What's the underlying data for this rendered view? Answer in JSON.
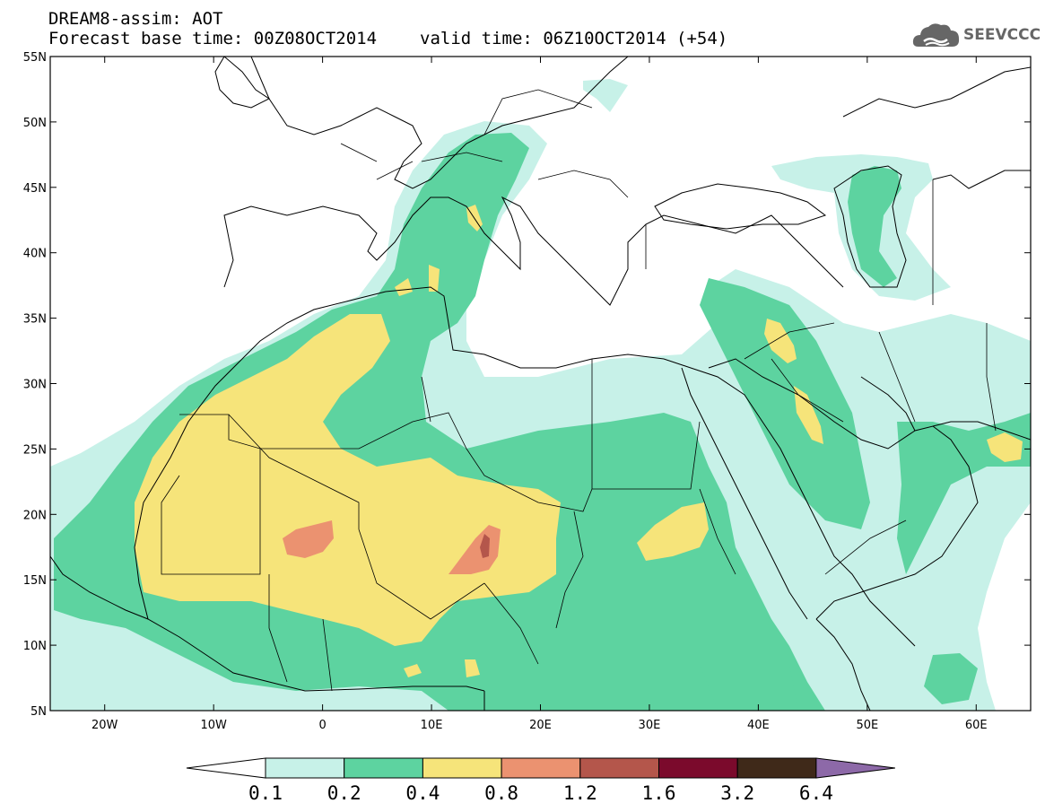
{
  "header": {
    "line1": "DREAM8-assim: AOT",
    "base_time": "Forecast base time: 00Z08OCT2014",
    "valid_time": "valid time: 06Z10OCT2014 (+54)"
  },
  "logo": {
    "text": "SEEVCCC",
    "icon": "cloud-icon",
    "color": "#666666"
  },
  "map": {
    "lon_range": [
      -25,
      65
    ],
    "lat_range": [
      5,
      55
    ],
    "lat_ticks": [
      {
        "value": 55,
        "label": "55N"
      },
      {
        "value": 50,
        "label": "50N"
      },
      {
        "value": 45,
        "label": "45N"
      },
      {
        "value": 40,
        "label": "40N"
      },
      {
        "value": 35,
        "label": "35N"
      },
      {
        "value": 30,
        "label": "30N"
      },
      {
        "value": 25,
        "label": "25N"
      },
      {
        "value": 20,
        "label": "20N"
      },
      {
        "value": 15,
        "label": "15N"
      },
      {
        "value": 10,
        "label": "10N"
      },
      {
        "value": 5,
        "label": "5N"
      }
    ],
    "lon_ticks": [
      {
        "value": -20,
        "label": "20W"
      },
      {
        "value": -10,
        "label": "10W"
      },
      {
        "value": 0,
        "label": "0"
      },
      {
        "value": 10,
        "label": "10E"
      },
      {
        "value": 20,
        "label": "20E"
      },
      {
        "value": 30,
        "label": "30E"
      },
      {
        "value": 40,
        "label": "40E"
      },
      {
        "value": 50,
        "label": "50E"
      },
      {
        "value": 60,
        "label": "60E"
      }
    ]
  },
  "colorbar": {
    "levels": [
      "0.1",
      "0.2",
      "0.4",
      "0.8",
      "1.2",
      "1.6",
      "3.2",
      "6.4"
    ],
    "colors": [
      "#c7f1e8",
      "#5dd3a0",
      "#f6e47a",
      "#eb9270",
      "#b4564b",
      "#7b0a2c",
      "#3f2919",
      "#8d69a8"
    ],
    "low_end_color": "#ffffff"
  },
  "legend_colors": {
    "c1": "#c7f1e8",
    "c2": "#5dd3a0",
    "c3": "#f6e47a",
    "c4": "#eb9270",
    "c5": "#b4564b"
  }
}
